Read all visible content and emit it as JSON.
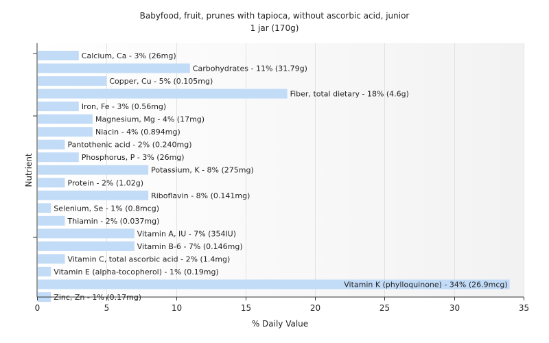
{
  "chart_data": {
    "type": "bar",
    "orientation": "horizontal",
    "title": "Babyfood, fruit, prunes with tapioca, without ascorbic acid, junior",
    "subtitle": "1 jar (170g)",
    "xlabel": "% Daily Value",
    "ylabel": "Nutrient",
    "xlim": [
      0,
      35
    ],
    "xticks": [
      "0",
      "5",
      "10",
      "15",
      "20",
      "25",
      "30",
      "35"
    ],
    "grid": true,
    "bar_color": "#c2dcf8",
    "categories": [
      "Calcium, Ca",
      "Carbohydrates",
      "Copper, Cu",
      "Fiber, total dietary",
      "Iron, Fe",
      "Magnesium, Mg",
      "Niacin",
      "Pantothenic acid",
      "Phosphorus, P",
      "Potassium, K",
      "Protein",
      "Riboflavin",
      "Selenium, Se",
      "Thiamin",
      "Vitamin A, IU",
      "Vitamin B-6",
      "Vitamin C, total ascorbic acid",
      "Vitamin E (alpha-tocopherol)",
      "Vitamin K (phylloquinone)",
      "Zinc, Zn"
    ],
    "values": [
      3,
      11,
      5,
      18,
      3,
      4,
      4,
      2,
      3,
      8,
      2,
      8,
      1,
      2,
      7,
      7,
      2,
      1,
      34,
      1
    ],
    "labels": [
      "Calcium, Ca - 3% (26mg)",
      "Carbohydrates - 11% (31.79g)",
      "Copper, Cu - 5% (0.105mg)",
      "Fiber, total dietary - 18% (4.6g)",
      "Iron, Fe - 3% (0.56mg)",
      "Magnesium, Mg - 4% (17mg)",
      "Niacin - 4% (0.894mg)",
      "Pantothenic acid - 2% (0.240mg)",
      "Phosphorus, P - 3% (26mg)",
      "Potassium, K - 8% (275mg)",
      "Protein - 2% (1.02g)",
      "Riboflavin - 8% (0.141mg)",
      "Selenium, Se - 1% (0.8mcg)",
      "Thiamin - 2% (0.037mg)",
      "Vitamin A, IU - 7% (354IU)",
      "Vitamin B-6 - 7% (0.146mg)",
      "Vitamin C, total ascorbic acid - 2% (1.4mg)",
      "Vitamin E (alpha-tocopherol) - 1% (0.19mg)",
      "Vitamin K (phylloquinone) - 34% (26.9mcg)",
      "Zinc, Zn - 1% (0.17mg)"
    ]
  }
}
